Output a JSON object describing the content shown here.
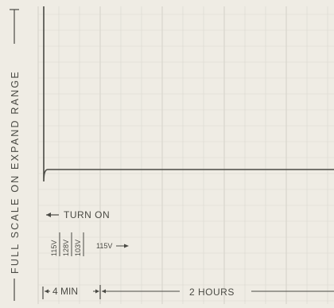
{
  "chart_data": {
    "type": "line",
    "title": "",
    "ylabel": "FULL SCALE ON EXPAND RANGE",
    "xlabel": "",
    "annotations": {
      "turn_on": "TURN ON",
      "voltages_stacked": [
        "115V",
        "128V",
        "103V"
      ],
      "voltage_after": "115V",
      "interval_1": "4 MIN",
      "interval_2": "2 HOURS"
    },
    "series": [
      {
        "values_note": "",
        "points": [
          [
            0,
            1.0
          ],
          [
            0.02,
            1.0
          ],
          [
            0.02,
            0.17
          ],
          [
            1.0,
            0.17
          ]
        ]
      }
    ],
    "grid": true,
    "colors": {
      "paper": "#efece4",
      "grid": "#d9d7cf",
      "trace": "#4a4a44",
      "text": "#4a4a44"
    }
  }
}
